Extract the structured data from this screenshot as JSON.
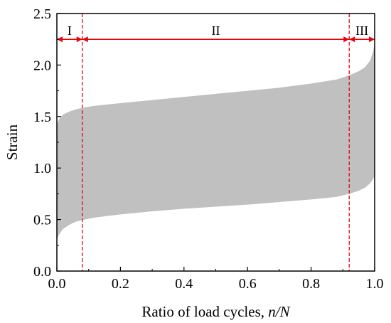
{
  "chart_data": {
    "type": "area",
    "title": "",
    "xlabel_prefix": "Ratio of load cycles, ",
    "xlabel_italic": "n/N",
    "ylabel": "Strain",
    "xlim": [
      0.0,
      1.0
    ],
    "ylim": [
      0.0,
      2.5
    ],
    "x_ticks": [
      0.0,
      0.2,
      0.4,
      0.6,
      0.8,
      1.0
    ],
    "x_tick_labels": [
      "0.0",
      "0.2",
      "0.4",
      "0.6",
      "0.8",
      "1.0"
    ],
    "y_ticks": [
      0.0,
      0.5,
      1.0,
      1.5,
      2.0,
      2.5
    ],
    "y_tick_labels": [
      "0.0",
      "0.5",
      "1.0",
      "1.5",
      "2.0",
      "2.5"
    ],
    "grid": false,
    "band": {
      "fill": "#c0c0c0",
      "upper": [
        [
          0.0,
          1.42
        ],
        [
          0.005,
          1.46
        ],
        [
          0.01,
          1.49
        ],
        [
          0.02,
          1.52
        ],
        [
          0.04,
          1.55
        ],
        [
          0.06,
          1.57
        ],
        [
          0.08,
          1.585
        ],
        [
          0.12,
          1.605
        ],
        [
          0.2,
          1.63
        ],
        [
          0.3,
          1.66
        ],
        [
          0.4,
          1.69
        ],
        [
          0.5,
          1.72
        ],
        [
          0.6,
          1.75
        ],
        [
          0.7,
          1.78
        ],
        [
          0.8,
          1.82
        ],
        [
          0.88,
          1.86
        ],
        [
          0.92,
          1.9
        ],
        [
          0.95,
          1.94
        ],
        [
          0.97,
          1.98
        ],
        [
          0.985,
          2.04
        ],
        [
          0.995,
          2.13
        ],
        [
          1.0,
          2.22
        ]
      ],
      "lower": [
        [
          0.0,
          0.3
        ],
        [
          0.005,
          0.34
        ],
        [
          0.01,
          0.37
        ],
        [
          0.02,
          0.41
        ],
        [
          0.04,
          0.45
        ],
        [
          0.06,
          0.48
        ],
        [
          0.08,
          0.495
        ],
        [
          0.12,
          0.52
        ],
        [
          0.2,
          0.55
        ],
        [
          0.3,
          0.58
        ],
        [
          0.4,
          0.605
        ],
        [
          0.5,
          0.625
        ],
        [
          0.6,
          0.645
        ],
        [
          0.7,
          0.67
        ],
        [
          0.8,
          0.695
        ],
        [
          0.88,
          0.72
        ],
        [
          0.92,
          0.75
        ],
        [
          0.95,
          0.78
        ],
        [
          0.97,
          0.81
        ],
        [
          0.985,
          0.85
        ],
        [
          0.995,
          0.89
        ],
        [
          1.0,
          0.93
        ]
      ]
    },
    "boundaries": [
      0.08,
      0.92
    ],
    "regions": [
      {
        "label": "I",
        "start": 0.0,
        "end": 0.08
      },
      {
        "label": "II",
        "start": 0.08,
        "end": 0.92
      },
      {
        "label": "III",
        "start": 0.92,
        "end": 1.0
      }
    ],
    "region_arrow_y": 2.25,
    "annotation_color": "#e8000b"
  }
}
